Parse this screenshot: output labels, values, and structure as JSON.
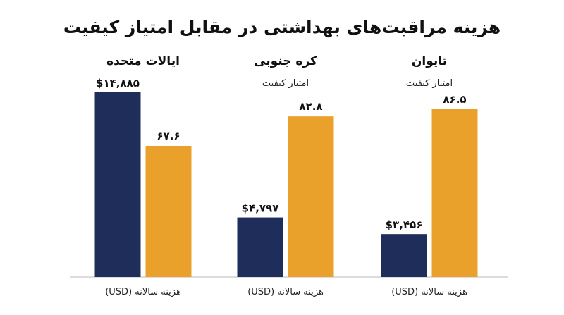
{
  "chart_data": {
    "type": "bar",
    "title": "هزینه مراقبت‌های بهداشتی در مقابل امتیاز کیفیت",
    "colors": {
      "cost": "#1f2d5a",
      "quality": "#e9a12b",
      "axis": "#b8b8b8"
    },
    "groups": [
      {
        "name": "ایالات متحده",
        "sublabel": "",
        "bottom_label": "هزینه سالانه (USD)",
        "cost_value": 14885,
        "cost_label": "$۱۴,۸۸۵",
        "quality_value": 67.6,
        "quality_label": "۶۷.۶"
      },
      {
        "name": "کره جنوبی",
        "sublabel": "امتیاز کیفیت",
        "bottom_label": "هزینه سالانه (USD)",
        "cost_value": 4797,
        "cost_label": "$۴,۷۹۷",
        "quality_value": 82.8,
        "quality_label": "۸۲.۸"
      },
      {
        "name": "تایوان",
        "sublabel": "امتیاز کیفیت",
        "bottom_label": "هزینه سالانه (USD)",
        "cost_value": 3456,
        "cost_label": "$۳,۴۵۶",
        "quality_value": 86.5,
        "quality_label": "۸۶.۵"
      }
    ]
  }
}
